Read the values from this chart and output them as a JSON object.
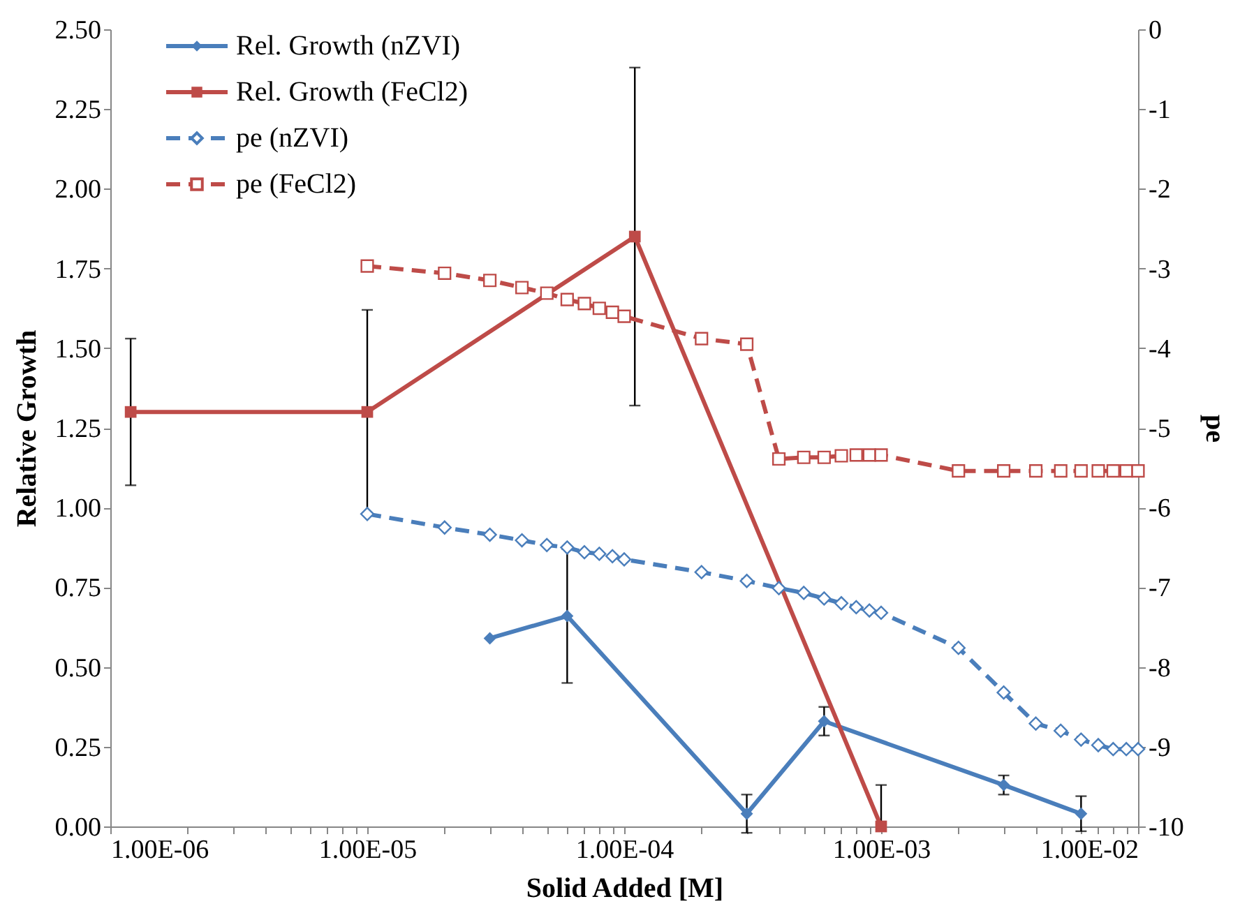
{
  "chart_data": {
    "type": "line",
    "xlabel": "Solid Added [M]",
    "ylabel": "Relative Growth",
    "y2label": "pe",
    "log": "x",
    "grid": false,
    "legend": "top left",
    "xlim": [
      1e-06,
      0.01
    ],
    "xticks": [
      {
        "value": 1e-06,
        "label": "1.00E-06"
      },
      {
        "value": 2e-06,
        "label": null
      },
      {
        "value": 3e-06,
        "label": null
      },
      {
        "value": 4e-06,
        "label": null
      },
      {
        "value": 5e-06,
        "label": null
      },
      {
        "value": 6e-06,
        "label": null
      },
      {
        "value": 7e-06,
        "label": null
      },
      {
        "value": 8e-06,
        "label": null
      },
      {
        "value": 9e-06,
        "label": null
      },
      {
        "value": 1e-05,
        "label": "1.00E-05"
      },
      {
        "value": 2e-05,
        "label": null
      },
      {
        "value": 3e-05,
        "label": null
      },
      {
        "value": 4e-05,
        "label": null
      },
      {
        "value": 5e-05,
        "label": null
      },
      {
        "value": 6e-05,
        "label": null
      },
      {
        "value": 7e-05,
        "label": null
      },
      {
        "value": 8e-05,
        "label": null
      },
      {
        "value": 9e-05,
        "label": null
      },
      {
        "value": 0.0001,
        "label": "1.00E-04"
      },
      {
        "value": 0.0002,
        "label": null
      },
      {
        "value": 0.0003,
        "label": null
      },
      {
        "value": 0.0004,
        "label": null
      },
      {
        "value": 0.0005,
        "label": null
      },
      {
        "value": 0.0006,
        "label": null
      },
      {
        "value": 0.0007,
        "label": null
      },
      {
        "value": 0.0008,
        "label": null
      },
      {
        "value": 0.0009,
        "label": null
      },
      {
        "value": 0.001,
        "label": "1.00E-03"
      },
      {
        "value": 0.002,
        "label": null
      },
      {
        "value": 0.003,
        "label": null
      },
      {
        "value": 0.004,
        "label": null
      },
      {
        "value": 0.005,
        "label": null
      },
      {
        "value": 0.006,
        "label": null
      },
      {
        "value": 0.007,
        "label": null
      },
      {
        "value": 0.008,
        "label": null
      },
      {
        "value": 0.009,
        "label": null
      },
      {
        "value": 0.01,
        "label": "1.00E-02"
      }
    ],
    "ylim": [
      0,
      2.5
    ],
    "yticks": [
      {
        "value": 0,
        "label": "0.00"
      },
      {
        "value": 0.25,
        "label": "0.25"
      },
      {
        "value": 0.5,
        "label": "0.50"
      },
      {
        "value": 0.75,
        "label": "0.75"
      },
      {
        "value": 1,
        "label": "1.00"
      },
      {
        "value": 1.25,
        "label": "1.25"
      },
      {
        "value": 1.5,
        "label": "1.50"
      },
      {
        "value": 1.75,
        "label": "1.75"
      },
      {
        "value": 2,
        "label": "2.00"
      },
      {
        "value": 2.25,
        "label": "2.25"
      },
      {
        "value": 2.5,
        "label": "2.50"
      }
    ],
    "y2lim": [
      -10,
      0
    ],
    "y2ticks": [
      -10,
      -9,
      -8,
      -7,
      -6,
      -5,
      -4,
      -3,
      -2,
      -1,
      0
    ],
    "series": [
      {
        "name": "Rel. Growth (nZVI)",
        "color": "#4a7ebb",
        "marker": "diamond",
        "line_style": "solid",
        "x": [
          3e-05,
          6e-05,
          0.0003,
          0.0006,
          0.003,
          0.006
        ],
        "values": [
          0.59,
          0.66,
          0.04,
          0.33,
          0.13,
          0.04
        ],
        "errors": [
          null,
          0.21,
          0.06,
          0.045,
          0.03,
          0.055
        ]
      },
      {
        "name": "Rel. Growth (FeCl2)",
        "color": "#be4b48",
        "marker": "square",
        "line_style": "solid",
        "x": [
          1.2e-06,
          1e-05,
          0.00011,
          0.001
        ],
        "values": [
          1.3,
          1.3,
          1.85,
          0
        ],
        "errors": [
          0.23,
          0.32,
          0.53,
          [
            0,
            0.13
          ]
        ]
      },
      {
        "name": "pe (nZVI)",
        "color": "#4a7ebb",
        "marker": "diamond",
        "line_style": "dashed",
        "axis": "y2",
        "x": [
          1e-05,
          2e-05,
          3e-05,
          4e-05,
          5e-05,
          6e-05,
          7e-05,
          8e-05,
          9e-05,
          0.0001,
          0.0002,
          0.0003,
          0.0004,
          0.0005,
          0.0006,
          0.0007,
          0.0008,
          0.0009,
          0.001,
          0.002,
          0.003,
          0.004,
          0.005,
          0.006,
          0.007,
          0.008,
          0.009,
          0.01
        ],
        "values": [
          -6.08,
          -6.25,
          -6.34,
          -6.41,
          -6.47,
          -6.5,
          -6.56,
          -6.58,
          -6.61,
          -6.65,
          -6.81,
          -6.92,
          -7.01,
          -7.07,
          -7.14,
          -7.2,
          -7.25,
          -7.29,
          -7.32,
          -7.76,
          -8.32,
          -8.71,
          -8.8,
          -8.91,
          -8.98,
          -9.03,
          -9.03,
          -9.03
        ]
      },
      {
        "name": "pe (FeCl2)",
        "color": "#be4b48",
        "marker": "square",
        "line_style": "dashed",
        "axis": "y2",
        "x": [
          1e-05,
          2e-05,
          3e-05,
          4e-05,
          5e-05,
          6e-05,
          7e-05,
          8e-05,
          9e-05,
          0.0001,
          0.0002,
          0.0003,
          0.0004,
          0.0005,
          0.0006,
          0.0007,
          0.0008,
          0.0009,
          0.001,
          0.002,
          0.003,
          0.004,
          0.005,
          0.006,
          0.007,
          0.008,
          0.009,
          0.01
        ],
        "values": [
          -2.97,
          -3.06,
          -3.15,
          -3.24,
          -3.31,
          -3.39,
          -3.44,
          -3.5,
          -3.55,
          -3.6,
          -3.88,
          -3.95,
          -5.39,
          -5.37,
          -5.37,
          -5.35,
          -5.34,
          -5.34,
          -5.34,
          -5.54,
          -5.54,
          -5.54,
          -5.54,
          -5.54,
          -5.54,
          -5.54,
          -5.54,
          -5.54
        ]
      }
    ]
  }
}
